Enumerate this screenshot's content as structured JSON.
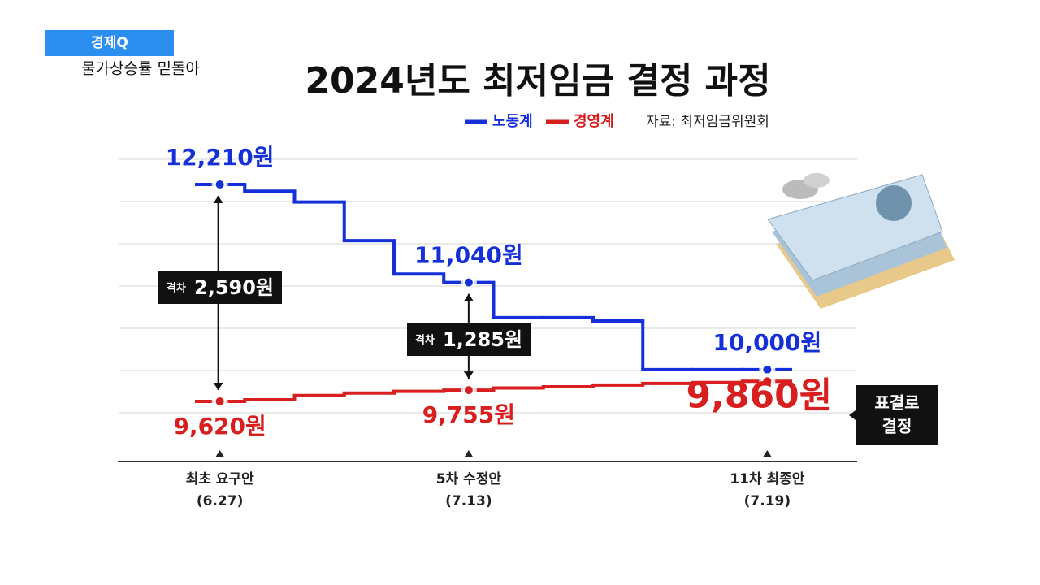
{
  "header": {
    "brand": "경제Q",
    "subtitle": "물가상승률 밑돌아"
  },
  "chart_data": {
    "type": "step",
    "title": "2024년도 최저임금 결정 과정",
    "source": "자료: 최저임금위원회",
    "categories": [
      "최초 요구안",
      null,
      null,
      null,
      null,
      "5차 수정안",
      null,
      null,
      null,
      null,
      null,
      "11차 최종안"
    ],
    "category_dates": [
      "(6.27)",
      null,
      null,
      null,
      null,
      "(7.13)",
      null,
      null,
      null,
      null,
      null,
      "(7.19)"
    ],
    "series": [
      {
        "name": "노동계",
        "color": "#1530d8",
        "values": [
          12210,
          12130,
          12000,
          11540,
          11140,
          11040,
          10620,
          10620,
          10580,
          10000,
          10000,
          10000
        ],
        "value_labels": [
          "12,210원",
          null,
          null,
          null,
          null,
          "11,040원",
          null,
          null,
          null,
          null,
          null,
          "10,000원"
        ]
      },
      {
        "name": "경영계",
        "color": "#d81e1e",
        "values": [
          9620,
          9640,
          9690,
          9720,
          9740,
          9755,
          9780,
          9795,
          9815,
          9835,
          9845,
          9860
        ],
        "value_labels": [
          "9,620원",
          null,
          null,
          null,
          null,
          "9,755원",
          null,
          null,
          null,
          null,
          null,
          "9,860원"
        ]
      }
    ],
    "gaps": [
      {
        "prefix": "격차",
        "text": "2,590원",
        "value": 2590
      },
      {
        "prefix": "격차",
        "text": "1,285원",
        "value": 1285
      }
    ],
    "note": [
      "표결로",
      "결정"
    ]
  }
}
